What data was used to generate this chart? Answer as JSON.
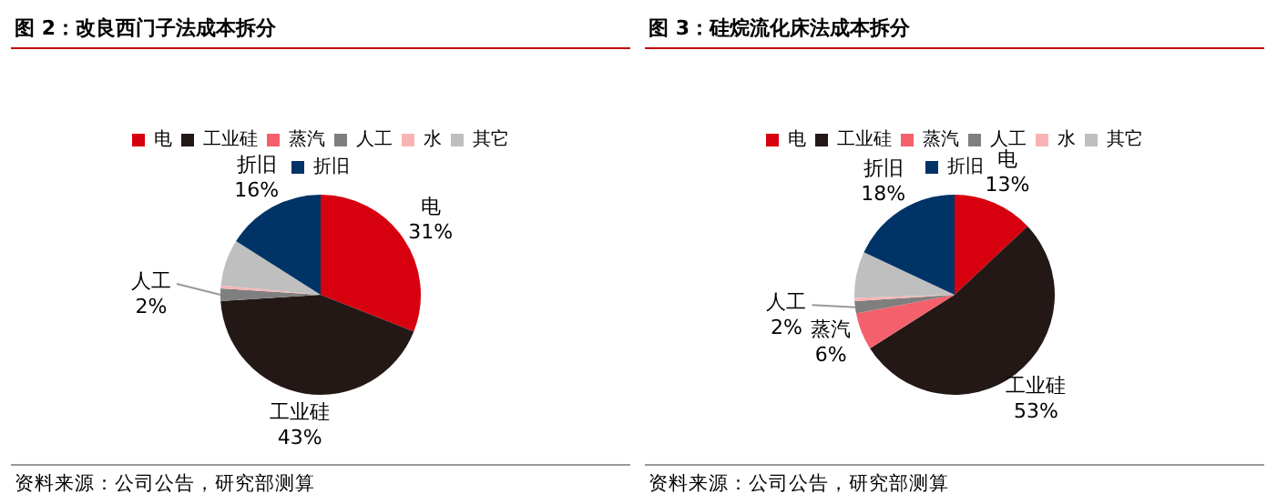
{
  "chart_data": [
    {
      "type": "pie",
      "title": "图 2：改良西门子法成本拆分",
      "categories": [
        "电",
        "工业硅",
        "蒸汽",
        "人工",
        "水",
        "其它",
        "折旧"
      ],
      "values": [
        31,
        43,
        0,
        2,
        0.5,
        7.5,
        16
      ],
      "colors": [
        "#d7000f",
        "#231815",
        "#f4606c",
        "#7f7f7f",
        "#f8b4b4",
        "#bfbfbf",
        "#003366"
      ],
      "value_labels": [
        "31%",
        "43%",
        null,
        "2%",
        null,
        null,
        "16%"
      ],
      "legend": "top",
      "annotations": [
        "资料来源：公司公告，研究部测算"
      ]
    },
    {
      "type": "pie",
      "title": "图 3：硅烷流化床法成本拆分",
      "categories": [
        "电",
        "工业硅",
        "蒸汽",
        "人工",
        "水",
        "其它",
        "折旧"
      ],
      "values": [
        13,
        53,
        6,
        2,
        0.5,
        7.5,
        18
      ],
      "colors": [
        "#d7000f",
        "#231815",
        "#f4606c",
        "#7f7f7f",
        "#f8b4b4",
        "#bfbfbf",
        "#003366"
      ],
      "value_labels": [
        "13%",
        "53%",
        "6%",
        "2%",
        null,
        null,
        "18%"
      ],
      "legend": "top",
      "annotations": [
        "资料来源：公司公告，研究部测算"
      ]
    }
  ]
}
